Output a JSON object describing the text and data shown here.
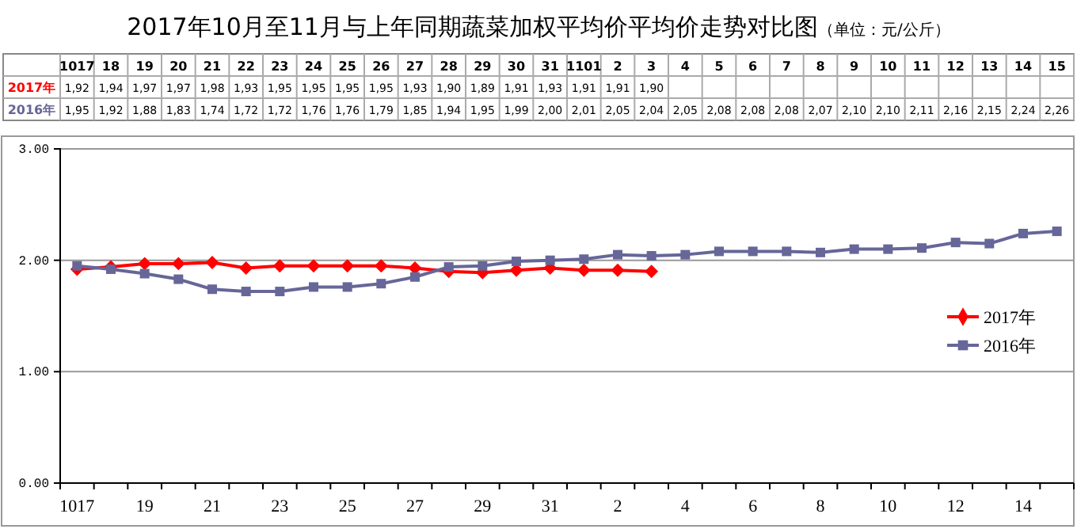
{
  "chart_data": {
    "type": "line",
    "title": "2017年10月至11月与上年同期蔬菜加权平均价平均价走势对比图",
    "subtitle": "（单位：元/公斤）",
    "categories": [
      "1017",
      "18",
      "19",
      "20",
      "21",
      "22",
      "23",
      "24",
      "25",
      "26",
      "27",
      "28",
      "29",
      "30",
      "31",
      "1101",
      "2",
      "3",
      "4",
      "5",
      "6",
      "7",
      "8",
      "9",
      "10",
      "11",
      "12",
      "13",
      "14",
      "15"
    ],
    "series": [
      {
        "name": "2017年",
        "color": "#ff0000",
        "marker": "diamond",
        "values": [
          1.92,
          1.94,
          1.97,
          1.97,
          1.98,
          1.93,
          1.95,
          1.95,
          1.95,
          1.95,
          1.93,
          1.9,
          1.89,
          1.91,
          1.93,
          1.91,
          1.91,
          1.9,
          null,
          null,
          null,
          null,
          null,
          null,
          null,
          null,
          null,
          null,
          null,
          null
        ],
        "value_labels": [
          "1,92",
          "1,94",
          "1,97",
          "1,97",
          "1,98",
          "1,93",
          "1,95",
          "1,95",
          "1,95",
          "1,95",
          "1,93",
          "1,90",
          "1,89",
          "1,91",
          "1,93",
          "1,91",
          "1,91",
          "1,90",
          null,
          null,
          null,
          null,
          null,
          null,
          null,
          null,
          null,
          null,
          null,
          null
        ]
      },
      {
        "name": "2016年",
        "color": "#666699",
        "marker": "square",
        "values": [
          1.95,
          1.92,
          1.88,
          1.83,
          1.74,
          1.72,
          1.72,
          1.76,
          1.76,
          1.79,
          1.85,
          1.94,
          1.95,
          1.99,
          2.0,
          2.01,
          2.05,
          2.04,
          2.05,
          2.08,
          2.08,
          2.08,
          2.07,
          2.1,
          2.1,
          2.11,
          2.16,
          2.15,
          2.24,
          2.26
        ],
        "value_labels": [
          "1,95",
          "1,92",
          "1,88",
          "1,83",
          "1,74",
          "1,72",
          "1,72",
          "1,76",
          "1,76",
          "1,79",
          "1,85",
          "1,94",
          "1,95",
          "1,99",
          "2,00",
          "2,01",
          "2,05",
          "2,04",
          "2,05",
          "2,08",
          "2,08",
          "2,08",
          "2,07",
          "2,10",
          "2,10",
          "2,11",
          "2,16",
          "2,15",
          "2,24",
          "2,26"
        ]
      }
    ],
    "ylim": [
      0,
      3
    ],
    "yticks": [
      {
        "value": 0,
        "label": "0.00"
      },
      {
        "value": 1,
        "label": "1.00"
      },
      {
        "value": 2,
        "label": "2.00"
      },
      {
        "value": 3,
        "label": "3.00"
      }
    ],
    "grid": "y",
    "legend": "right",
    "line_style": "solid"
  }
}
